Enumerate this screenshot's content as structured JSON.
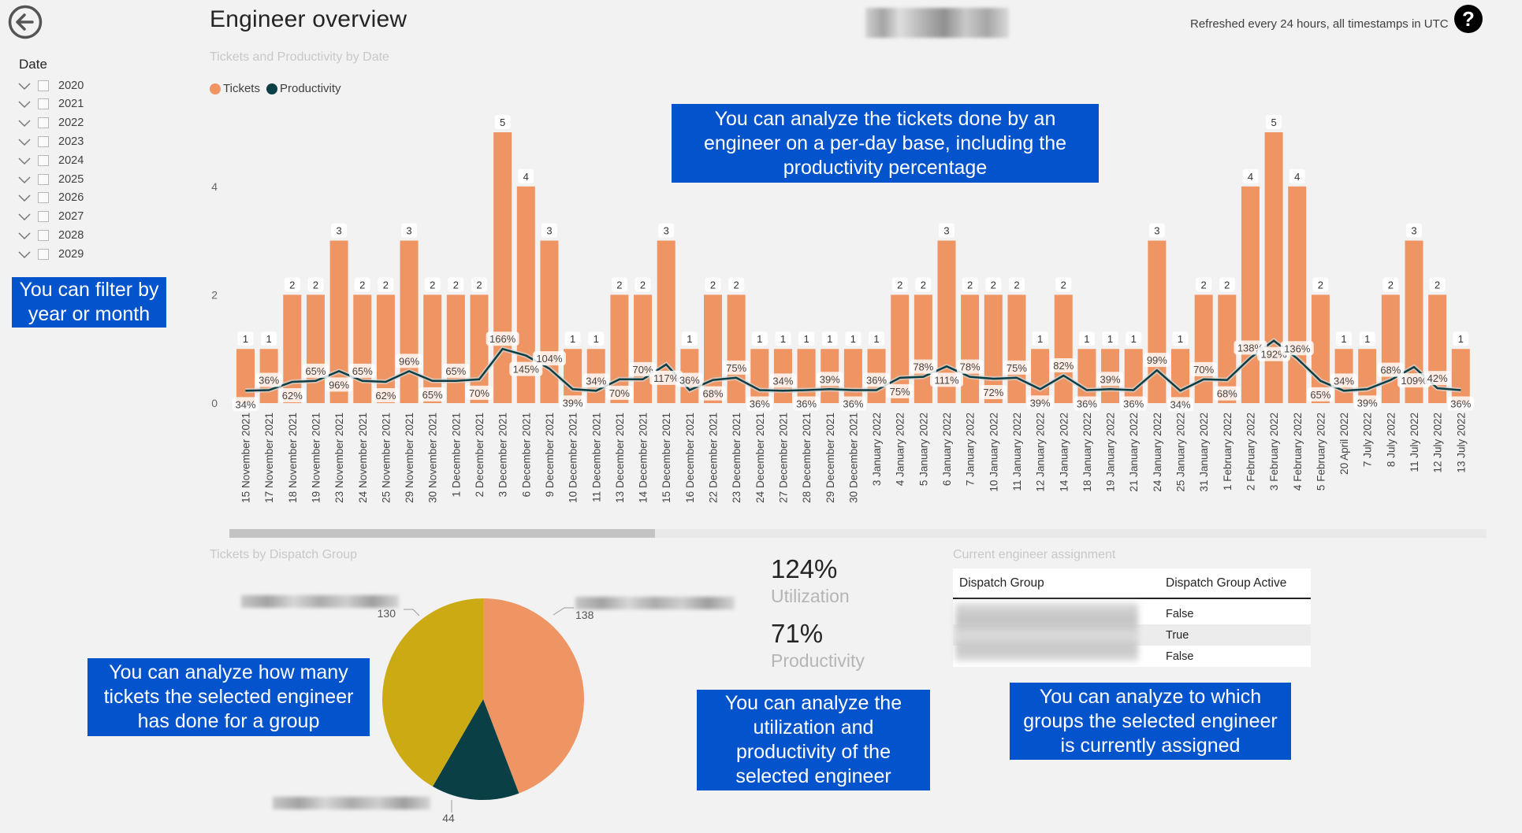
{
  "header": {
    "title": "Engineer overview",
    "refresh_note": "Refreshed every 24 hours, all timestamps in UTC"
  },
  "sidebar": {
    "date_label": "Date",
    "years": [
      "2020",
      "2021",
      "2022",
      "2023",
      "2024",
      "2025",
      "2026",
      "2027",
      "2028",
      "2029"
    ]
  },
  "callouts": {
    "filter": "You can filter by year or month",
    "chart": "You can analyze the tickets done by an engineer on a per-day base, including the productivity percentage",
    "pie": "You can analyze how many tickets the selected engineer has done for a group",
    "kpi": "You can analyze the utilization and productivity of the selected engineer",
    "table": "You can analyze to which groups the selected engineer is currently assigned"
  },
  "colors": {
    "tickets": "#ef9563",
    "productivity": "#0b3f46",
    "pie_gold": "#ccaa14",
    "callout": "#0353cc"
  },
  "chart_data": {
    "type": "bar",
    "title": "Tickets and Productivity by Date",
    "legend": [
      "Tickets",
      "Productivity"
    ],
    "categories": [
      "15 November 2021",
      "17 November 2021",
      "18 November 2021",
      "19 November 2021",
      "23 November 2021",
      "24 November 2021",
      "25 November 2021",
      "29 November 2021",
      "30 November 2021",
      "1 December 2021",
      "2 December 2021",
      "3 December 2021",
      "6 December 2021",
      "9 December 2021",
      "10 December 2021",
      "11 December 2021",
      "13 December 2021",
      "14 December 2021",
      "15 December 2021",
      "16 December 2021",
      "22 December 2021",
      "23 December 2021",
      "24 December 2021",
      "27 December 2021",
      "28 December 2021",
      "29 December 2021",
      "30 December 2021",
      "3 January 2022",
      "4 January 2022",
      "5 January 2022",
      "6 January 2022",
      "7 January 2022",
      "10 January 2022",
      "11 January 2022",
      "12 January 2022",
      "14 January 2022",
      "18 January 2022",
      "19 January 2022",
      "21 January 2022",
      "24 January 2022",
      "25 January 2022",
      "31 January 2022",
      "1 February 2022",
      "2 February 2022",
      "3 February 2022",
      "4 February 2022",
      "5 February 2022",
      "20 April 2022",
      "7 July 2022",
      "8 July 2022",
      "11 July 2022",
      "12 July 2022",
      "13 July 2022"
    ],
    "series": [
      {
        "name": "Tickets",
        "values": [
          1,
          1,
          2,
          2,
          3,
          2,
          2,
          3,
          2,
          2,
          2,
          5,
          4,
          3,
          1,
          1,
          2,
          2,
          3,
          1,
          2,
          2,
          1,
          1,
          1,
          1,
          1,
          1,
          2,
          2,
          3,
          2,
          2,
          2,
          1,
          2,
          1,
          1,
          1,
          3,
          1,
          2,
          2,
          4,
          5,
          4,
          2,
          1,
          1,
          2,
          3,
          2,
          1
        ]
      },
      {
        "name": "Productivity",
        "values": [
          34,
          36,
          62,
          65,
          96,
          65,
          62,
          96,
          65,
          65,
          70,
          166,
          145,
          104,
          39,
          34,
          70,
          70,
          117,
          36,
          68,
          75,
          36,
          34,
          36,
          39,
          36,
          36,
          75,
          78,
          111,
          78,
          72,
          75,
          39,
          82,
          36,
          39,
          36,
          99,
          34,
          70,
          68,
          138,
          192,
          136,
          65,
          34,
          39,
          68,
          109,
          42,
          36
        ]
      }
    ],
    "ylim": [
      0,
      5
    ],
    "yticks": [
      0,
      2,
      4
    ]
  },
  "pie_chart": {
    "title": "Tickets by Dispatch Group",
    "slices": [
      {
        "value": 138,
        "color": "#ef9563"
      },
      {
        "value": 44,
        "color": "#0b3f46"
      },
      {
        "value": 130,
        "color": "#ccaa14"
      }
    ]
  },
  "kpis": {
    "utilization_value": "124%",
    "utilization_label": "Utilization",
    "productivity_value": "71%",
    "productivity_label": "Productivity"
  },
  "assignment_table": {
    "title": "Current engineer assignment",
    "col1": "Dispatch Group",
    "col2": "Dispatch Group Active",
    "rows": [
      "False",
      "True",
      "False"
    ]
  }
}
